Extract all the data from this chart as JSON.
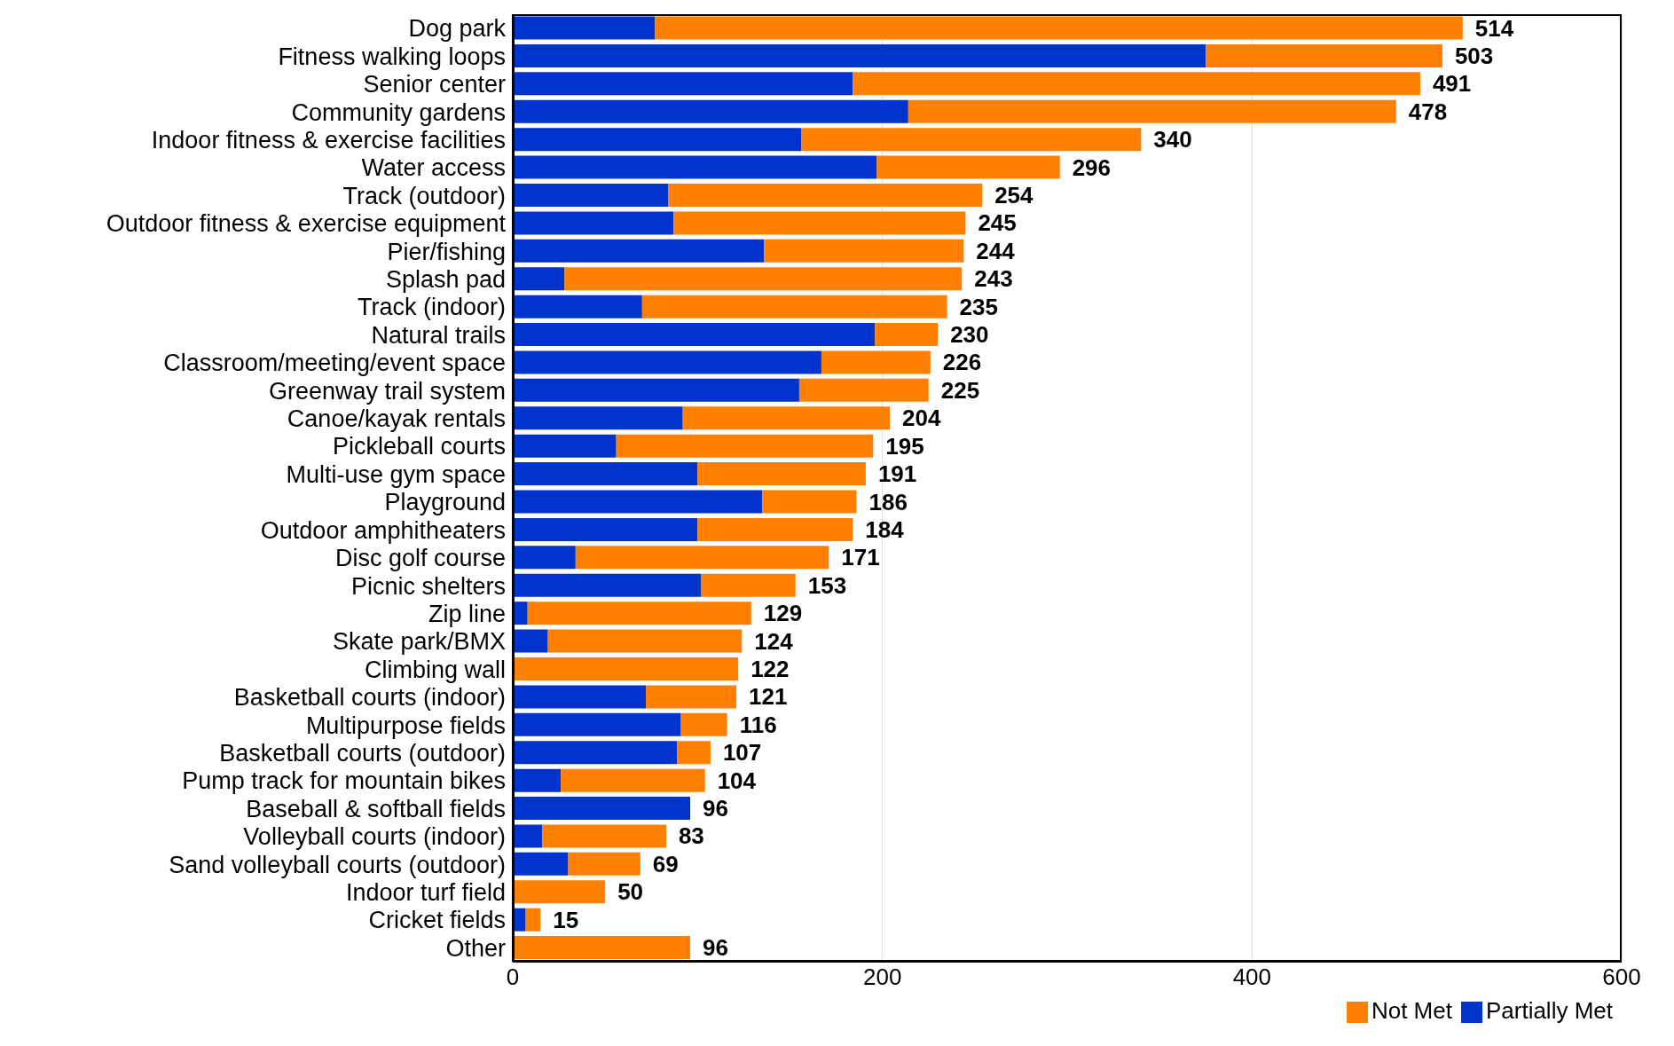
{
  "chart_data": {
    "type": "bar",
    "orientation": "horizontal",
    "stacked": true,
    "categories": [
      "Dog park",
      "Fitness walking loops",
      "Senior center",
      "Community gardens",
      "Indoor fitness & exercise facilities",
      "Water access",
      "Track (outdoor)",
      "Outdoor fitness & exercise equipment",
      "Pier/fishing",
      "Splash pad",
      "Track (indoor)",
      "Natural trails",
      "Classroom/meeting/event space",
      "Greenway trail system",
      "Canoe/kayak rentals",
      "Pickleball courts",
      "Multi-use gym space",
      "Playground",
      "Outdoor amphitheaters",
      "Disc golf course",
      "Picnic shelters",
      "Zip line",
      "Skate park/BMX",
      "Climbing wall",
      "Basketball courts (indoor)",
      "Multipurpose fields",
      "Basketball courts (outdoor)",
      "Pump track for mountain bikes",
      "Baseball & softball fields",
      "Volleyball courts (indoor)",
      "Sand volleyball courts (outdoor)",
      "Indoor turf field",
      "Cricket fields",
      "Other"
    ],
    "series": [
      {
        "name": "Partially Met",
        "color": "#0033cc",
        "values": [
          77,
          375,
          184,
          214,
          156,
          197,
          84,
          87,
          136,
          28,
          70,
          196,
          167,
          155,
          92,
          56,
          100,
          135,
          100,
          34,
          102,
          8,
          19,
          0,
          72,
          91,
          89,
          26,
          96,
          16,
          30,
          0,
          7,
          0
        ]
      },
      {
        "name": "Not Met",
        "color": "#ff8000",
        "values": [
          437,
          128,
          307,
          264,
          184,
          99,
          170,
          158,
          108,
          215,
          165,
          34,
          59,
          70,
          112,
          139,
          91,
          51,
          84,
          137,
          51,
          121,
          105,
          122,
          49,
          25,
          18,
          78,
          0,
          67,
          39,
          50,
          8,
          96
        ]
      }
    ],
    "totals": [
      "514",
      "503",
      "491",
      "478",
      "340",
      "296",
      "254",
      "245",
      "244",
      "243",
      "235",
      "230",
      "226",
      "225",
      "204",
      "195",
      "191",
      "186",
      "184",
      "171",
      "153",
      "129",
      "124",
      "122",
      "121",
      "116",
      "107",
      "104",
      "96",
      "83",
      "69",
      "50",
      "15",
      "96"
    ],
    "xlim": [
      0,
      600
    ],
    "xticks": [
      0,
      200,
      400,
      600
    ],
    "grid": "x",
    "legend": "bottom right"
  }
}
